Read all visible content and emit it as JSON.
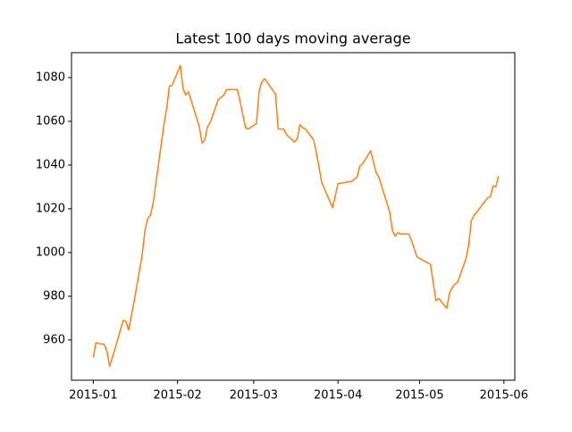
{
  "chart_data": {
    "type": "line",
    "title": "Latest 100 days moving average",
    "x": [
      "2015-01-01",
      "2015-01-02",
      "2015-01-03",
      "2015-01-05",
      "2015-01-06",
      "2015-01-07",
      "2015-01-09",
      "2015-01-12",
      "2015-01-13",
      "2015-01-14",
      "2015-01-16",
      "2015-01-19",
      "2015-01-20",
      "2015-01-21",
      "2015-01-22",
      "2015-01-23",
      "2015-01-27",
      "2015-01-28",
      "2015-01-29",
      "2015-01-30",
      "2015-02-02",
      "2015-02-03",
      "2015-02-04",
      "2015-02-05",
      "2015-02-09",
      "2015-02-10",
      "2015-02-11",
      "2015-02-12",
      "2015-02-13",
      "2015-02-16",
      "2015-02-18",
      "2015-02-19",
      "2015-02-23",
      "2015-02-24",
      "2015-02-26",
      "2015-02-27",
      "2015-03-02",
      "2015-03-03",
      "2015-03-04",
      "2015-03-05",
      "2015-03-09",
      "2015-03-10",
      "2015-03-12",
      "2015-03-13",
      "2015-03-16",
      "2015-03-17",
      "2015-03-18",
      "2015-03-19",
      "2015-03-20",
      "2015-03-23",
      "2015-03-24",
      "2015-03-26",
      "2015-03-30",
      "2015-04-01",
      "2015-04-06",
      "2015-04-07",
      "2015-04-08",
      "2015-04-09",
      "2015-04-10",
      "2015-04-13",
      "2015-04-15",
      "2015-04-16",
      "2015-04-20",
      "2015-04-21",
      "2015-04-22",
      "2015-04-23",
      "2015-04-24",
      "2015-04-27",
      "2015-04-28",
      "2015-04-30",
      "2015-05-05",
      "2015-05-07",
      "2015-05-08",
      "2015-05-11",
      "2015-05-12",
      "2015-05-13",
      "2015-05-14",
      "2015-05-15",
      "2015-05-18",
      "2015-05-19",
      "2015-05-20",
      "2015-05-21",
      "2015-05-22",
      "2015-05-26",
      "2015-05-27",
      "2015-05-28",
      "2015-05-29",
      "2015-05-30"
    ],
    "series": [
      {
        "color": "#ff7f0e",
        "values": [
          952,
          958.8,
          958.4,
          958,
          955,
          948,
          956,
          969,
          968.5,
          964.5,
          977.5,
          999,
          1010,
          1015.5,
          1017,
          1022.5,
          1058.5,
          1066,
          1076,
          1076.5,
          1085.5,
          1075,
          1072,
          1073.5,
          1057.5,
          1050,
          1051.5,
          1057.5,
          1059.5,
          1070,
          1072,
          1074.5,
          1074.5,
          1069,
          1057,
          1056.5,
          1059,
          1074,
          1078,
          1079.5,
          1072.5,
          1056.5,
          1056.5,
          1054,
          1050.5,
          1052,
          1058.5,
          1057,
          1056.5,
          1051.5,
          1046,
          1032,
          1020.5,
          1031.5,
          1032.5,
          1033.5,
          1034.5,
          1039.5,
          1040.5,
          1046.5,
          1036.5,
          1034.5,
          1018.5,
          1010,
          1007.5,
          1009,
          1008.5,
          1008.5,
          1005.5,
          998,
          994.5,
          978,
          979,
          974.5,
          981.5,
          984,
          985.5,
          986.5,
          997,
          1003,
          1014.5,
          1017,
          1018.5,
          1025,
          1025.5,
          1030.5,
          1030,
          1035
        ]
      }
    ],
    "xlim": [
      "2014-12-24",
      "2015-06-05"
    ],
    "xticks": [
      {
        "value": "2015-01-01",
        "label": "2015-01"
      },
      {
        "value": "2015-02-01",
        "label": "2015-02"
      },
      {
        "value": "2015-03-01",
        "label": "2015-03"
      },
      {
        "value": "2015-04-01",
        "label": "2015-04"
      },
      {
        "value": "2015-05-01",
        "label": "2015-05"
      },
      {
        "value": "2015-06-01",
        "label": "2015-06"
      }
    ],
    "ylim": [
      941.6,
      1091.4
    ],
    "yticks": [
      960,
      980,
      1000,
      1020,
      1040,
      1060,
      1080
    ]
  }
}
